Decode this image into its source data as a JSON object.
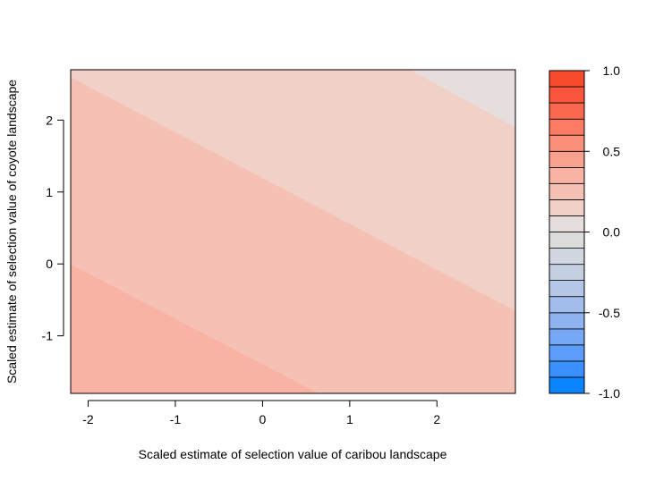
{
  "chart_data": {
    "type": "heatmap",
    "title": "",
    "xlabel": "Scaled estimate of selection value of caribou landscape",
    "ylabel": "Scaled estimate of selection value of coyote landscape",
    "xlim": [
      -2.2,
      2.9
    ],
    "ylim": [
      -1.8,
      2.7
    ],
    "x_ticks": [
      -2,
      -1,
      0,
      1,
      2
    ],
    "x_tick_labels": [
      "-2",
      "-1",
      "0",
      "1",
      "2"
    ],
    "y_ticks": [
      -1,
      0,
      1,
      2
    ],
    "y_tick_labels": [
      "-1",
      "0",
      "1",
      "2"
    ],
    "contour_regions": [
      {
        "level_range": [
          0.4,
          0.5
        ],
        "color": "#F9B3A5"
      },
      {
        "level_range": [
          0.3,
          0.4
        ],
        "color": "#F6C1B5"
      },
      {
        "level_range": [
          0.2,
          0.3
        ],
        "color": "#F1D0C8"
      },
      {
        "level_range": [
          0.1,
          0.2
        ],
        "color": "#E6DEDC"
      }
    ],
    "region_boundaries": [
      {
        "between": "0.4-0.5 / 0.3-0.4",
        "points": [
          [
            -2.2,
            0.0
          ],
          [
            0.65,
            -1.8
          ]
        ]
      },
      {
        "between": "0.3-0.4 / 0.2-0.3",
        "points": [
          [
            -2.2,
            2.6
          ],
          [
            2.9,
            -0.65
          ]
        ]
      },
      {
        "between": "0.2-0.3 / 0.1-0.2",
        "points": [
          [
            1.7,
            2.7
          ],
          [
            2.9,
            1.9
          ]
        ]
      }
    ],
    "legend": {
      "position": "right",
      "levels": [
        -1.0,
        -0.9,
        -0.8,
        -0.7,
        -0.6,
        -0.5,
        -0.4,
        -0.3,
        -0.2,
        -0.1,
        0.0,
        0.1,
        0.2,
        0.3,
        0.4,
        0.5,
        0.6,
        0.7,
        0.8,
        0.9,
        1.0
      ],
      "colors": [
        "#0A84FF",
        "#3B90FF",
        "#5C9CFA",
        "#76A8F5",
        "#8FB3F0",
        "#A3BDEB",
        "#B5C6E6",
        "#C4CFE2",
        "#D1D6E0",
        "#DCDCDD",
        "#E6DEDC",
        "#F1D0C8",
        "#F6C1B5",
        "#F9B3A5",
        "#FBA28F",
        "#FC8F79",
        "#FC7B63",
        "#FC684F",
        "#FB553D",
        "#F84B2E"
      ],
      "tick_values": [
        1.0,
        0.5,
        0.0,
        -0.5,
        -1.0
      ],
      "tick_labels": [
        "1.0",
        "0.5",
        "0.0",
        "-0.5",
        "-1.0"
      ]
    }
  }
}
